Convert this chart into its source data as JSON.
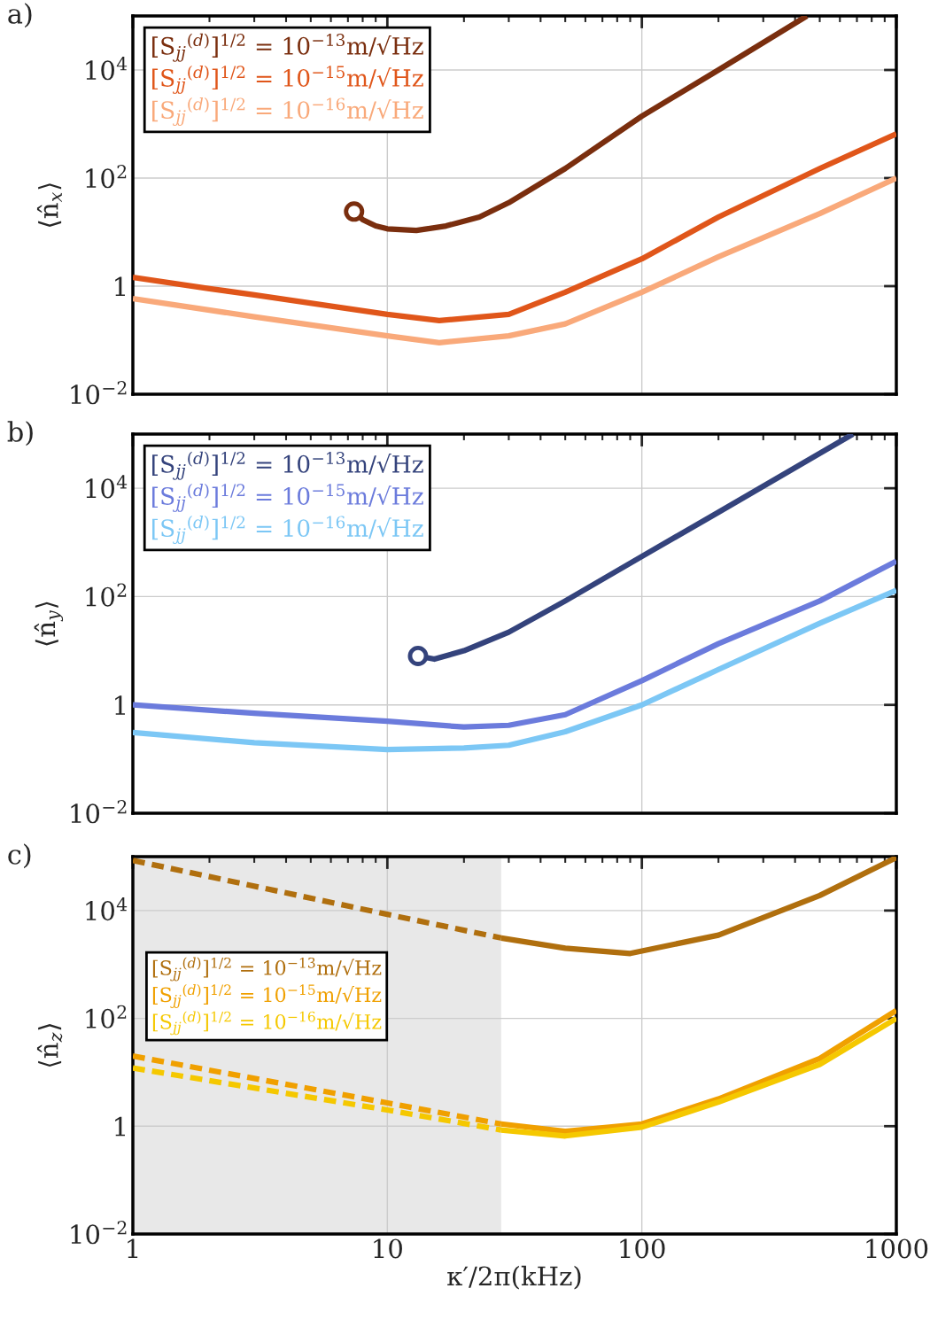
{
  "chart_data": [
    {
      "type": "line",
      "title": "a)",
      "ylabel": "⟨n̂$_{x}$⟩",
      "xlim": [
        1,
        1000
      ],
      "ylim": [
        0.01,
        100000
      ],
      "xticks": [
        1,
        10,
        100,
        1000
      ],
      "yticks": [
        {
          "value": 0.01,
          "label": "10$^{−2}$"
        },
        1,
        {
          "value": 100,
          "label": "10$^{2}$"
        },
        {
          "value": 10000,
          "label": "10$^{4}$"
        }
      ],
      "log": "xy",
      "grid": true,
      "legend": "top left",
      "tick_labels": "y",
      "series": [
        {
          "name": "[S$_{jj}$$^{(d)}$]$^{1/2}$ = 10$^{−13}$m/√Hz",
          "color": "#7a2e0e",
          "x": [
            7.4,
            8,
            9,
            10,
            13,
            17,
            23,
            30,
            50,
            100,
            200,
            445
          ],
          "values": [
            24,
            17,
            13,
            11.5,
            10.7,
            13,
            19,
            35,
            150,
            1400,
            10000,
            100000
          ]
        },
        {
          "name": "[S$_{jj}$$^{(d)}$]$^{1/2}$ = 10$^{−15}$m/√Hz",
          "color": "#e0561a",
          "x": [
            1,
            2,
            3,
            10,
            16,
            30,
            50,
            100,
            200,
            500,
            1000
          ],
          "values": [
            1.45,
            0.9,
            0.69,
            0.3,
            0.23,
            0.3,
            0.77,
            3.2,
            19,
            150,
            660
          ]
        },
        {
          "name": "[S$_{jj}$$^{(d)}$]$^{1/2}$ = 10$^{−16}$m/√Hz",
          "color": "#f9a97a",
          "x": [
            1,
            3,
            10,
            16,
            30,
            50,
            100,
            200,
            500,
            1000
          ],
          "values": [
            0.59,
            0.27,
            0.12,
            0.09,
            0.12,
            0.2,
            0.77,
            3.5,
            22,
            100
          ]
        },
        {
          "type": "scatter",
          "marker": "circle",
          "color": "#7a2e0e",
          "x": [
            7.4
          ],
          "values": [
            24
          ]
        }
      ]
    },
    {
      "type": "line",
      "title": "b)",
      "ylabel": "⟨n̂$_{y}$⟩",
      "xlim": [
        1,
        1000
      ],
      "ylim": [
        0.01,
        100000
      ],
      "xticks": [
        1,
        10,
        100,
        1000
      ],
      "yticks": [
        {
          "value": 0.01,
          "label": "10$^{−2}$"
        },
        1,
        {
          "value": 100,
          "label": "10$^{2}$"
        },
        {
          "value": 10000,
          "label": "10$^{4}$"
        }
      ],
      "log": "xy",
      "grid": true,
      "legend": "top left",
      "tick_labels": "y",
      "series": [
        {
          "name": "[S$_{jj}$$^{(d)}$]$^{1/2}$ = 10$^{−13}$m/√Hz",
          "color": "#34437c",
          "x": [
            13.2,
            15.3,
            20,
            30,
            50,
            100,
            200,
            675
          ],
          "values": [
            8,
            7,
            10,
            22,
            83,
            550,
            3600,
            100000
          ]
        },
        {
          "name": "[S$_{jj}$$^{(d)}$]$^{1/2}$ = 10$^{−15}$m/√Hz",
          "color": "#6b7bdc",
          "x": [
            1,
            3,
            10,
            20,
            30,
            50,
            100,
            200,
            500,
            1000
          ],
          "values": [
            1.0,
            0.7,
            0.5,
            0.39,
            0.42,
            0.66,
            2.8,
            13.5,
            83,
            450
          ]
        },
        {
          "name": "[S$_{jj}$$^{(d)}$]$^{1/2}$ = 10$^{−16}$m/√Hz",
          "color": "#7cc7f5",
          "x": [
            1,
            3,
            10,
            20,
            30,
            50,
            100,
            200,
            500,
            1000
          ],
          "values": [
            0.31,
            0.2,
            0.15,
            0.16,
            0.18,
            0.32,
            1.0,
            4.5,
            32,
            130
          ]
        },
        {
          "type": "scatter",
          "marker": "circle",
          "color": "#34437c",
          "x": [
            13.2
          ],
          "values": [
            8
          ]
        }
      ]
    },
    {
      "type": "line",
      "title": "c)",
      "ylabel": "⟨n̂$_{z}$⟩",
      "xlabel": "κ′/2π(kHz)",
      "xlim": [
        1,
        1000
      ],
      "ylim": [
        0.01,
        100000
      ],
      "xticks": [
        1,
        10,
        100,
        1000
      ],
      "yticks": [
        {
          "value": 0.01,
          "label": "10$^{−2}$"
        },
        1,
        {
          "value": 100,
          "label": "10$^{2}$"
        },
        {
          "value": 10000,
          "label": "10$^{4}$"
        }
      ],
      "log": "xy",
      "grid": true,
      "legend": "left",
      "bands": [
        {
          "axis": "x",
          "from": 1,
          "to": 28,
          "color": "#e8e8e8"
        }
      ],
      "series": [
        {
          "line_style": "dashed",
          "color": "#b06f0e",
          "x": [
            1,
            10,
            28
          ],
          "values": [
            85000,
            8500,
            3100
          ]
        },
        {
          "line_style": "dashed",
          "color": "#f0a000",
          "x": [
            1,
            10,
            28
          ],
          "values": [
            20,
            2.7,
            1.1
          ]
        },
        {
          "line_style": "dashed",
          "color": "#f5c800",
          "x": [
            1,
            10,
            28
          ],
          "values": [
            12,
            2.0,
            0.85
          ]
        },
        {
          "name": "[S$_{jj}$$^{(d)}$]$^{1/2}$ = 10$^{−13}$m/√Hz",
          "color": "#b06f0e",
          "x": [
            28,
            50,
            90,
            200,
            500,
            1000
          ],
          "values": [
            3100,
            2000,
            1600,
            3500,
            19000,
            96000
          ]
        },
        {
          "name": "[S$_{jj}$$^{(d)}$]$^{1/2}$ = 10$^{−15}$m/√Hz",
          "color": "#f0a000",
          "x": [
            28,
            50,
            100,
            200,
            500,
            1000
          ],
          "values": [
            1.1,
            0.8,
            1.1,
            3.2,
            18,
            140
          ]
        },
        {
          "name": "[S$_{jj}$$^{(d)}$]$^{1/2}$ = 10$^{−16}$m/√Hz",
          "color": "#f5c800",
          "x": [
            28,
            50,
            100,
            200,
            500,
            1000
          ],
          "values": [
            0.85,
            0.66,
            0.96,
            2.8,
            14,
            100
          ]
        }
      ]
    }
  ]
}
